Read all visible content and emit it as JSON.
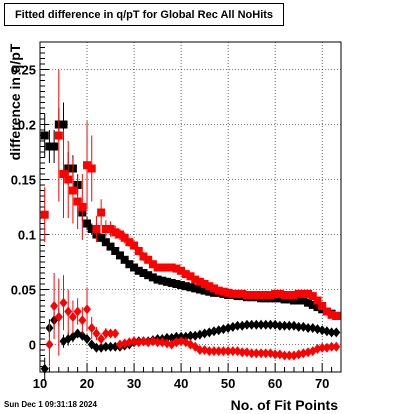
{
  "footer": {
    "timestamp": "Sun Dec  1 09:31:18 2024"
  },
  "chart_data": {
    "type": "scatter",
    "title": "Fitted difference in q/pT for Global Rec All NoHits",
    "xlabel": "No. of Fit Points",
    "ylabel": "difference in q/pT",
    "xlim": [
      10,
      74
    ],
    "ylim": [
      -0.025,
      0.275
    ],
    "xticks": [
      10,
      20,
      30,
      40,
      50,
      60,
      70
    ],
    "xtick_labels": [
      "10",
      "20",
      "30",
      "40",
      "50",
      "60",
      "70"
    ],
    "yticks": [
      0,
      0.05,
      0.1,
      0.15,
      0.2,
      0.25
    ],
    "ytick_labels": [
      "0",
      "0.05",
      "0.1",
      "0.15",
      "0.2",
      "0.25"
    ],
    "grid": true,
    "colors": {
      "black": "#000000",
      "red": "#ff0000"
    },
    "series": [
      {
        "color": "#000000",
        "marker": "square",
        "x": [
          11,
          12,
          13,
          14,
          15,
          16,
          17,
          18,
          19,
          20,
          21,
          22,
          23,
          24,
          25,
          26,
          27,
          28,
          29,
          30,
          31,
          32,
          33,
          34,
          35,
          36,
          37,
          38,
          39,
          40,
          41,
          42,
          43,
          44,
          45,
          46,
          47,
          48,
          49,
          50,
          51,
          52,
          53,
          54,
          55,
          56,
          57,
          58,
          59,
          60,
          61,
          62,
          63,
          64,
          65,
          66,
          67,
          68,
          69,
          70,
          71,
          72,
          73
        ],
        "y": [
          0.19,
          0.18,
          0.18,
          0.2,
          0.2,
          0.16,
          0.16,
          0.145,
          0.12,
          0.11,
          0.105,
          0.1,
          0.097,
          0.093,
          0.089,
          0.085,
          0.081,
          0.077,
          0.073,
          0.07,
          0.067,
          0.065,
          0.063,
          0.061,
          0.059,
          0.058,
          0.057,
          0.056,
          0.055,
          0.054,
          0.053,
          0.052,
          0.051,
          0.05,
          0.049,
          0.048,
          0.047,
          0.047,
          0.046,
          0.045,
          0.045,
          0.044,
          0.044,
          0.043,
          0.043,
          0.043,
          0.042,
          0.042,
          0.042,
          0.042,
          0.042,
          0.041,
          0.041,
          0.04,
          0.04,
          0.04,
          0.038,
          0.036,
          0.034,
          0.032,
          0.03,
          0.028,
          0.026
        ],
        "yerr": [
          0.02,
          0.015,
          0.015,
          0.015,
          0.02,
          0.015,
          0.012,
          0.01,
          0.008,
          0.006,
          0.005,
          0.004,
          0.004,
          0.003,
          0.003,
          0.003,
          0.002,
          0.002,
          0.002,
          0.002,
          0.002,
          0.002,
          0.002,
          0.002,
          0.002,
          0.002,
          0.002,
          0.002,
          0.002,
          0.002,
          0.002,
          0.002,
          0.002,
          0.002,
          0.002,
          0.002,
          0.002,
          0.002,
          0.002,
          0.002,
          0.002,
          0.002,
          0.002,
          0.002,
          0.002,
          0.002,
          0.002,
          0.002,
          0.002,
          0.002,
          0.002,
          0.002,
          0.002,
          0.002,
          0.002,
          0.002,
          0.002,
          0.002,
          0.002,
          0.002,
          0.002,
          0.002,
          0.002
        ]
      },
      {
        "color": "#ff0000",
        "marker": "square",
        "x": [
          11,
          14,
          15,
          16,
          17,
          18,
          19,
          20,
          21,
          22,
          23,
          24,
          25,
          26,
          27,
          28,
          29,
          30,
          31,
          32,
          33,
          34,
          35,
          36,
          37,
          38,
          39,
          40,
          41,
          42,
          43,
          44,
          45,
          46,
          47,
          48,
          49,
          50,
          51,
          52,
          53,
          54,
          55,
          56,
          57,
          58,
          59,
          60,
          61,
          62,
          63,
          64,
          65,
          66,
          67,
          68,
          69,
          70,
          71,
          72,
          73
        ],
        "y": [
          0.118,
          0.19,
          0.155,
          0.15,
          0.14,
          0.13,
          0.125,
          0.163,
          0.16,
          0.105,
          0.12,
          0.105,
          0.105,
          0.102,
          0.1,
          0.097,
          0.093,
          0.09,
          0.085,
          0.08,
          0.077,
          0.073,
          0.07,
          0.07,
          0.07,
          0.07,
          0.069,
          0.067,
          0.064,
          0.062,
          0.059,
          0.057,
          0.055,
          0.053,
          0.051,
          0.049,
          0.048,
          0.047,
          0.046,
          0.046,
          0.046,
          0.045,
          0.045,
          0.045,
          0.045,
          0.045,
          0.045,
          0.046,
          0.046,
          0.045,
          0.045,
          0.045,
          0.046,
          0.046,
          0.046,
          0.044,
          0.04,
          0.035,
          0.03,
          0.027,
          0.026
        ],
        "yerr": [
          0.025,
          0.06,
          0.04,
          0.035,
          0.03,
          0.025,
          0.03,
          0.04,
          0.03,
          0.012,
          0.012,
          0.008,
          0.007,
          0.006,
          0.005,
          0.005,
          0.004,
          0.004,
          0.004,
          0.004,
          0.003,
          0.003,
          0.003,
          0.003,
          0.003,
          0.003,
          0.003,
          0.003,
          0.003,
          0.003,
          0.003,
          0.003,
          0.003,
          0.003,
          0.003,
          0.003,
          0.003,
          0.003,
          0.003,
          0.003,
          0.003,
          0.003,
          0.003,
          0.003,
          0.003,
          0.003,
          0.003,
          0.003,
          0.003,
          0.003,
          0.003,
          0.003,
          0.003,
          0.003,
          0.003,
          0.003,
          0.003,
          0.003,
          0.003,
          0.003,
          0.003
        ]
      },
      {
        "color": "#000000",
        "marker": "diamond",
        "x": [
          11,
          12,
          13,
          14,
          15,
          16,
          17,
          18,
          19,
          20,
          21,
          22,
          23,
          24,
          25,
          26,
          27,
          28,
          29,
          30,
          31,
          32,
          33,
          34,
          35,
          36,
          37,
          38,
          39,
          40,
          41,
          42,
          43,
          44,
          45,
          46,
          47,
          48,
          49,
          50,
          51,
          52,
          53,
          54,
          55,
          56,
          57,
          58,
          59,
          60,
          61,
          62,
          63,
          64,
          65,
          66,
          67,
          68,
          69,
          70,
          71,
          72,
          73
        ],
        "y": [
          -0.022,
          0.015,
          0.022,
          0.025,
          0.003,
          0.005,
          0.007,
          0.01,
          0.008,
          0.005,
          0.0,
          -0.003,
          -0.003,
          -0.002,
          -0.002,
          -0.002,
          -0.002,
          -0.001,
          0.0,
          0.002,
          0.003,
          0.003,
          0.003,
          0.004,
          0.005,
          0.005,
          0.006,
          0.006,
          0.007,
          0.007,
          0.007,
          0.008,
          0.008,
          0.009,
          0.01,
          0.011,
          0.012,
          0.013,
          0.014,
          0.015,
          0.016,
          0.017,
          0.017,
          0.018,
          0.018,
          0.018,
          0.018,
          0.018,
          0.018,
          0.018,
          0.017,
          0.017,
          0.017,
          0.017,
          0.016,
          0.016,
          0.015,
          0.015,
          0.014,
          0.013,
          0.012,
          0.011,
          0.011
        ],
        "yerr": [
          0.01,
          0.008,
          0.008,
          0.008,
          0.006,
          0.006,
          0.005,
          0.004,
          0.004,
          0.003,
          0.003,
          0.002,
          0.002,
          0.002,
          0.002,
          0.002,
          0.002,
          0.002,
          0.002,
          0.002,
          0.002,
          0.002,
          0.002,
          0.002,
          0.002,
          0.002,
          0.002,
          0.002,
          0.002,
          0.002,
          0.002,
          0.002,
          0.002,
          0.002,
          0.002,
          0.002,
          0.002,
          0.002,
          0.002,
          0.002,
          0.002,
          0.002,
          0.002,
          0.002,
          0.002,
          0.002,
          0.002,
          0.002,
          0.002,
          0.002,
          0.002,
          0.002,
          0.002,
          0.002,
          0.002,
          0.002,
          0.002,
          0.002,
          0.002,
          0.002,
          0.002,
          0.002,
          0.002
        ]
      },
      {
        "color": "#ff0000",
        "marker": "diamond",
        "x": [
          12,
          13,
          14,
          15,
          16,
          17,
          18,
          19,
          20,
          21,
          22,
          23,
          24,
          25,
          26,
          27,
          28,
          29,
          30,
          31,
          32,
          33,
          34,
          35,
          36,
          37,
          38,
          39,
          40,
          41,
          42,
          43,
          44,
          45,
          46,
          47,
          48,
          49,
          50,
          51,
          52,
          53,
          54,
          55,
          56,
          57,
          58,
          59,
          60,
          61,
          62,
          63,
          64,
          65,
          66,
          67,
          68,
          69,
          70,
          71,
          72,
          73
        ],
        "y": [
          0.0,
          0.035,
          0.025,
          0.038,
          0.03,
          0.025,
          0.03,
          0.022,
          0.032,
          0.015,
          0.01,
          0.005,
          0.01,
          0.01,
          0.01,
          0.0,
          0.001,
          0.002,
          0.003,
          0.002,
          0.003,
          0.002,
          0.003,
          0.002,
          0.002,
          0.001,
          0.0,
          0.002,
          0.003,
          0.002,
          0.0,
          -0.002,
          -0.005,
          -0.005,
          -0.006,
          -0.006,
          -0.006,
          -0.006,
          -0.006,
          -0.006,
          -0.006,
          -0.007,
          -0.007,
          -0.008,
          -0.008,
          -0.008,
          -0.008,
          -0.008,
          -0.009,
          -0.009,
          -0.01,
          -0.01,
          -0.01,
          -0.009,
          -0.008,
          -0.007,
          -0.006,
          -0.004,
          -0.003,
          -0.003,
          -0.002,
          -0.002
        ],
        "yerr": [
          0.02,
          0.03,
          0.035,
          0.025,
          0.02,
          0.015,
          0.012,
          0.012,
          0.02,
          0.01,
          0.006,
          0.005,
          0.005,
          0.004,
          0.004,
          0.003,
          0.003,
          0.003,
          0.003,
          0.003,
          0.003,
          0.003,
          0.003,
          0.003,
          0.003,
          0.003,
          0.003,
          0.003,
          0.003,
          0.003,
          0.003,
          0.003,
          0.003,
          0.003,
          0.003,
          0.003,
          0.003,
          0.003,
          0.003,
          0.003,
          0.003,
          0.003,
          0.003,
          0.003,
          0.003,
          0.003,
          0.003,
          0.003,
          0.003,
          0.003,
          0.003,
          0.003,
          0.003,
          0.003,
          0.003,
          0.003,
          0.003,
          0.003,
          0.003,
          0.003,
          0.003,
          0.003
        ]
      }
    ]
  }
}
